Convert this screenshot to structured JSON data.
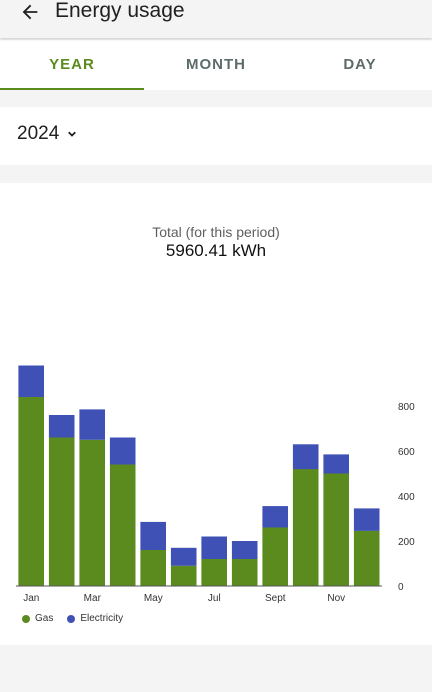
{
  "header": {
    "title": "Energy usage",
    "back_icon": "arrow-back-icon"
  },
  "tabs": [
    {
      "label": "YEAR",
      "active": true
    },
    {
      "label": "MONTH",
      "active": false
    },
    {
      "label": "DAY",
      "active": false
    }
  ],
  "year_selector": {
    "value": "2024",
    "icon": "chevron-down-icon"
  },
  "summary": {
    "label": "Total (for this period)",
    "value": "5960.41 kWh"
  },
  "colors": {
    "accent": "#5b8a1e",
    "gas": "#5b8a1e",
    "electricity": "#3f51b5"
  },
  "chart_data": {
    "type": "bar",
    "stacked": true,
    "categories": [
      "Jan",
      "Feb",
      "Mar",
      "Apr",
      "May",
      "Jun",
      "Jul",
      "Aug",
      "Sept",
      "Oct",
      "Nov",
      "Dec"
    ],
    "x_tick_labels": [
      "Jan",
      "",
      "Mar",
      "",
      "May",
      "",
      "Jul",
      "",
      "Sept",
      "",
      "Nov",
      ""
    ],
    "series": [
      {
        "name": "Gas",
        "color": "#5b8a1e",
        "values": [
          840,
          660,
          650,
          540,
          160,
          90,
          120,
          120,
          260,
          520,
          500,
          245
        ]
      },
      {
        "name": "Electricity",
        "color": "#3f51b5",
        "values": [
          140,
          100,
          135,
          120,
          125,
          80,
          100,
          80,
          95,
          110,
          85,
          100
        ]
      }
    ],
    "ylim": [
      0,
      1000
    ],
    "y_ticks": [
      0,
      200,
      400,
      600,
      800
    ],
    "y_axis_side": "right",
    "legend_position": "bottom-left",
    "grid": false
  }
}
